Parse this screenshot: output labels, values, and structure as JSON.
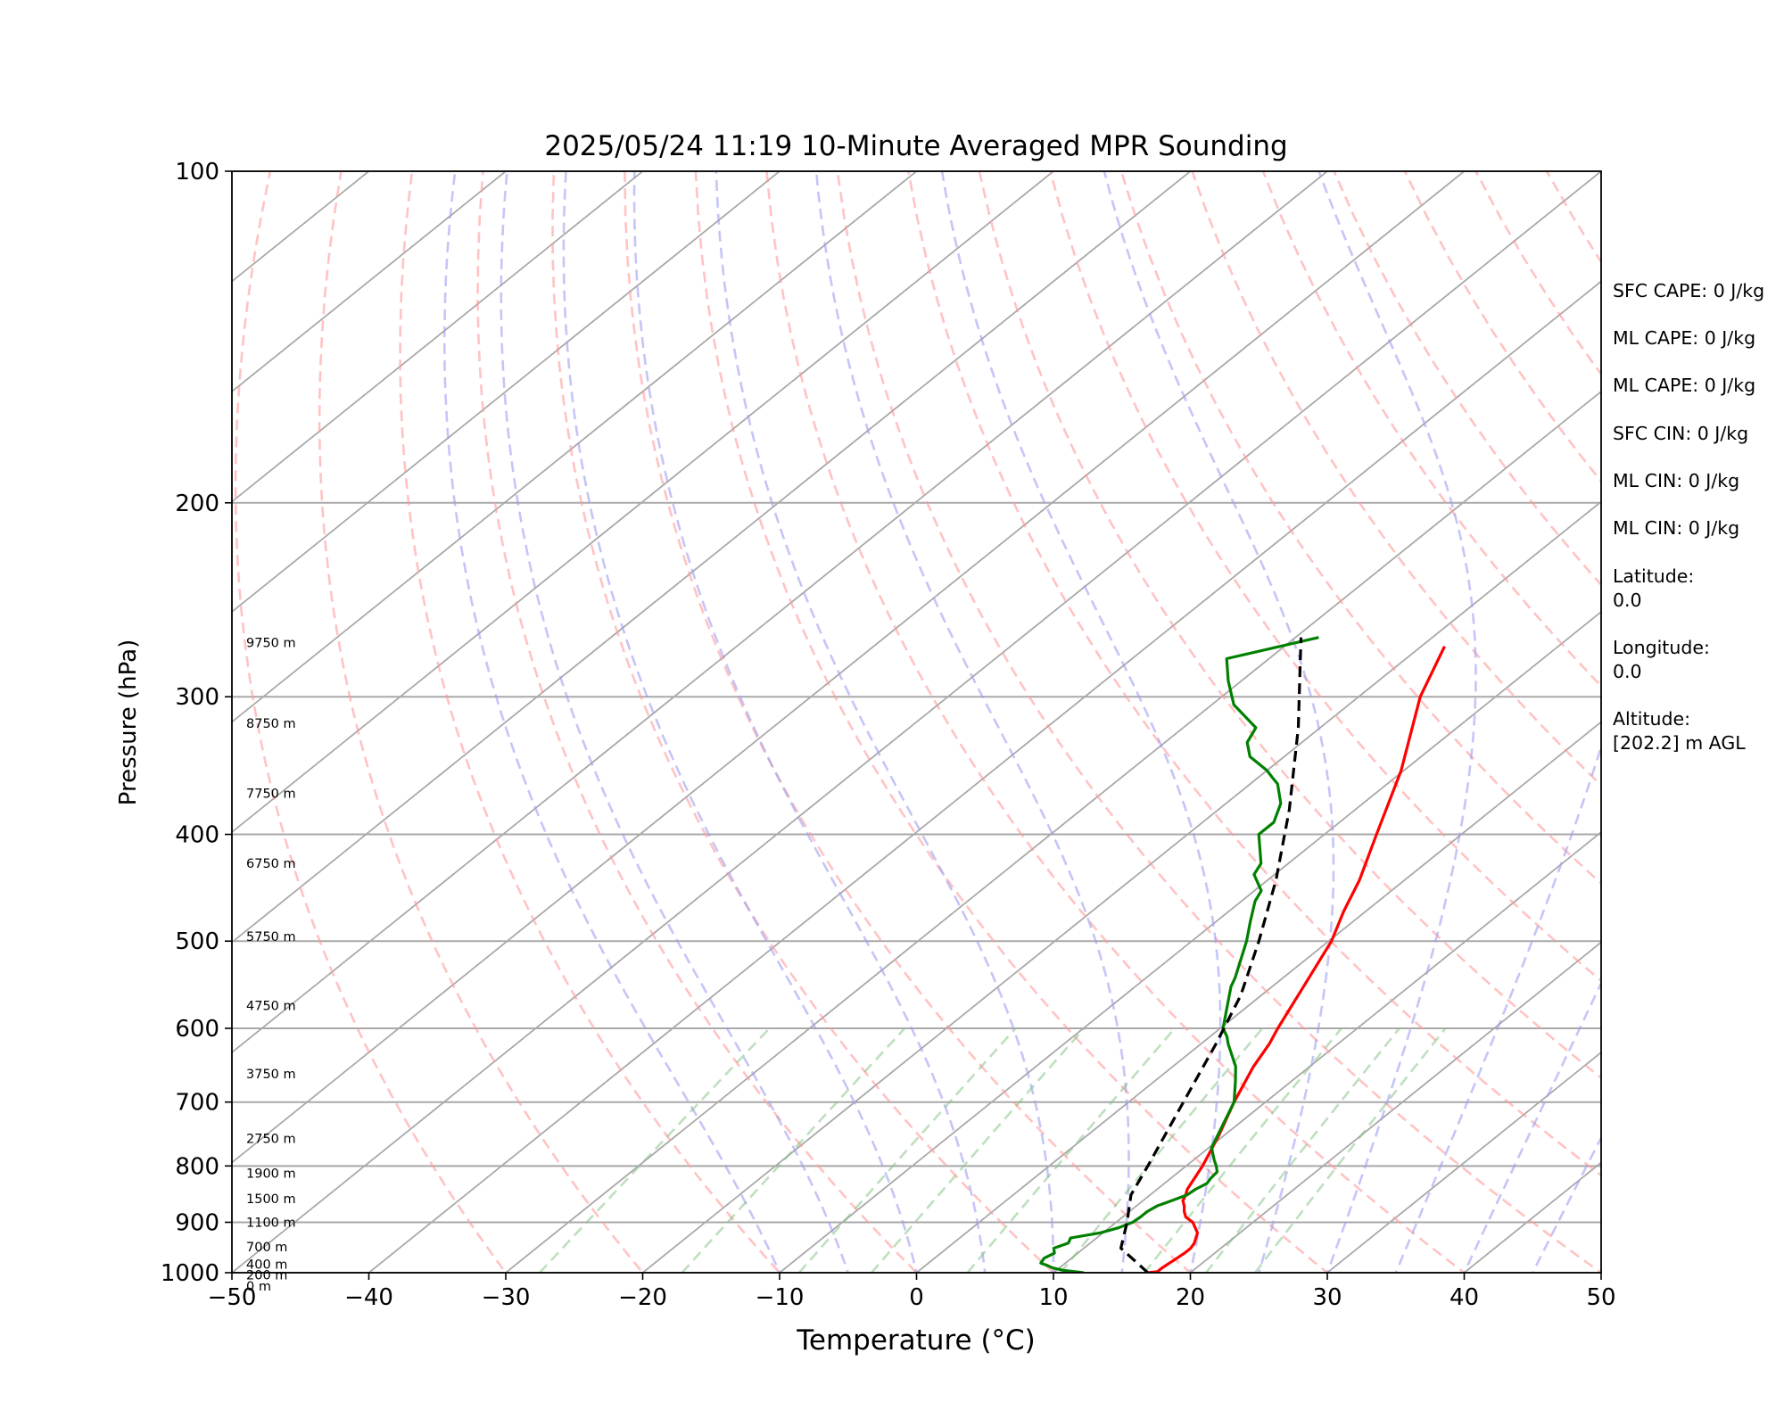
{
  "chart_data": {
    "type": "line",
    "title": "2025/05/24 11:19 10-Minute Averaged MPR Sounding",
    "xlabel": "Temperature (°C)",
    "ylabel": "Pressure (hPa)",
    "xlim": [
      -50,
      50
    ],
    "ylim": [
      1000,
      100
    ],
    "y_scale": "log",
    "grid": true,
    "x_ticks": [
      "−50",
      "−40",
      "−30",
      "−20",
      "−10",
      "0",
      "10",
      "20",
      "30",
      "40",
      "50"
    ],
    "y_ticks": [
      "100",
      "200",
      "300",
      "400",
      "500",
      "600",
      "700",
      "800",
      "900",
      "1000"
    ],
    "series": [
      {
        "color": "#ff0000",
        "x": [
          16.9,
          17.5,
          17.5,
          17.6,
          17.7,
          17.8,
          17.8,
          17.6,
          16.9,
          15.6,
          14.6,
          14.0,
          13.5,
          12.9,
          12.6,
          12.2,
          11.2,
          9.6,
          7.7,
          5.9,
          5.0,
          4.2,
          2.3,
          0.2,
          -1.6,
          -3.3,
          -6.2,
          -10.2,
          -15.5,
          -18.3
        ],
        "y": [
          1000,
          998,
          990,
          980,
          970,
          960,
          950,
          940,
          920,
          900,
          890,
          880,
          870,
          860,
          850,
          840,
          800,
          750,
          700,
          650,
          620,
          600,
          550,
          500,
          470,
          440,
          400,
          350,
          300,
          270
        ]
      },
      {
        "color": "#008000",
        "x": [
          12.2,
          10.5,
          9.5,
          8.9,
          8.2,
          8.0,
          8.3,
          7.8,
          8.4,
          8.1,
          9.8,
          10.7,
          11.2,
          11.3,
          11.3,
          11.5,
          12.1,
          12.7,
          12.8,
          13.1,
          12.9,
          12.8,
          12.2,
          11.5,
          10.2,
          7.7,
          5.9,
          4.6,
          2.0,
          1.2,
          0.2,
          -3.0,
          -3.5,
          -6.0,
          -7.5,
          -9.0,
          -9.5,
          -11.5,
          -12.0,
          -14.8,
          -14.8,
          -16.0,
          -18.0,
          -19.0,
          -20.0,
          -22.5,
          -24.0,
          -24.7,
          -28.4,
          -31.0,
          -33.1,
          -28.3
        ],
        "y": [
          1000,
          995,
          990,
          985,
          980,
          970,
          960,
          950,
          940,
          930,
          920,
          910,
          900,
          890,
          880,
          870,
          860,
          850,
          840,
          830,
          820,
          810,
          800,
          790,
          770,
          700,
          670,
          650,
          620,
          610,
          600,
          550,
          540,
          500,
          480,
          460,
          450,
          435,
          425,
          400,
          390,
          375,
          360,
          355,
          350,
          340,
          330,
          320,
          305,
          290,
          277,
          265
        ]
      },
      {
        "color": "#000000",
        "x": [
          16.9,
          12.7,
          10.8,
          8.6,
          7.2,
          4.0,
          1.1,
          -1.5,
          -5.1,
          -9.4,
          -14.8,
          -21.6,
          -29.6
        ],
        "y": [
          1000,
          950,
          900,
          850,
          800,
          700,
          620,
          560,
          500,
          440,
          380,
          320,
          265
        ]
      }
    ],
    "height_labels": [
      "9750 m",
      "8750 m",
      "7750 m",
      "6750 m",
      "5750 m",
      "4750 m",
      "3750 m",
      "2750 m",
      "1900 m",
      "1500 m",
      "1100 m",
      "700 m",
      "400 m",
      "200 m",
      "0 m"
    ],
    "height_label_pressures": [
      268,
      317,
      367,
      425,
      495,
      572,
      660,
      755,
      812,
      857,
      900,
      947,
      982,
      1005,
      1028
    ]
  },
  "info_panel": [
    "SFC CAPE: 0 J/kg",
    "ML CAPE: 0 J/kg",
    "ML CAPE: 0 J/kg",
    "SFC CIN: 0 J/kg",
    "ML CIN: 0 J/kg",
    "ML CIN: 0 J/kg",
    "Latitude:\n0.0",
    "Longitude:\n0.0",
    "Altitude:\n[202.2] m AGL"
  ]
}
